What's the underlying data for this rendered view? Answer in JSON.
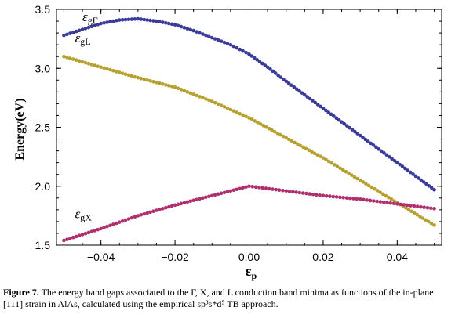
{
  "chart_data": {
    "type": "scatter",
    "xlabel": "ε",
    "xlabel_sub": "p",
    "ylabel": "Energy(eV)",
    "xlim": [
      -0.052,
      0.052
    ],
    "ylim": [
      1.5,
      3.5
    ],
    "x_ticks": [
      -0.04,
      -0.02,
      0.0,
      0.02,
      0.04
    ],
    "x_tick_labels": [
      "−0.04",
      "−0.02",
      "0.00",
      "0.02",
      "0.04"
    ],
    "y_ticks": [
      1.5,
      2.0,
      2.5,
      3.0,
      3.5
    ],
    "y_tick_labels": [
      "1.5",
      "2.0",
      "2.5",
      "3.0",
      "3.5"
    ],
    "vertical_reference_x": 0.0,
    "grid": false,
    "series": [
      {
        "name": "εgΓ",
        "label_main": "ε",
        "label_sub": "gΓ",
        "color": "#3a3a99",
        "points": [
          [
            -0.05,
            3.28
          ],
          [
            -0.045,
            3.33
          ],
          [
            -0.04,
            3.38
          ],
          [
            -0.035,
            3.41
          ],
          [
            -0.03,
            3.42
          ],
          [
            -0.025,
            3.4
          ],
          [
            -0.02,
            3.37
          ],
          [
            -0.015,
            3.32
          ],
          [
            -0.01,
            3.26
          ],
          [
            -0.005,
            3.2
          ],
          [
            0.0,
            3.12
          ],
          [
            0.005,
            3.01
          ],
          [
            0.01,
            2.89
          ],
          [
            0.02,
            2.66
          ],
          [
            0.03,
            2.43
          ],
          [
            0.04,
            2.2
          ],
          [
            0.05,
            1.97
          ]
        ]
      },
      {
        "name": "εgL",
        "label_main": "ε",
        "label_sub": "gL",
        "color": "#b5a030",
        "points": [
          [
            -0.05,
            3.1
          ],
          [
            -0.04,
            3.01
          ],
          [
            -0.03,
            2.92
          ],
          [
            -0.02,
            2.84
          ],
          [
            -0.01,
            2.72
          ],
          [
            0.0,
            2.58
          ],
          [
            0.01,
            2.41
          ],
          [
            0.02,
            2.24
          ],
          [
            0.03,
            2.05
          ],
          [
            0.04,
            1.86
          ],
          [
            0.05,
            1.67
          ]
        ]
      },
      {
        "name": "εgX",
        "label_main": "ε",
        "label_sub": "gX",
        "color": "#b0306e",
        "points": [
          [
            -0.05,
            1.54
          ],
          [
            -0.04,
            1.64
          ],
          [
            -0.03,
            1.75
          ],
          [
            -0.02,
            1.84
          ],
          [
            -0.01,
            1.92
          ],
          [
            0.0,
            2.0
          ],
          [
            0.01,
            1.96
          ],
          [
            0.02,
            1.92
          ],
          [
            0.03,
            1.89
          ],
          [
            0.04,
            1.85
          ],
          [
            0.05,
            1.81
          ]
        ]
      }
    ]
  },
  "caption": {
    "figure_label": "Figure 7.",
    "text": "The energy band gaps associated to the Γ, X, and L conduction band minima as functions of the in-plane [111] strain in AlAs, calculated using the empirical sp³s*d⁵ TB approach."
  }
}
